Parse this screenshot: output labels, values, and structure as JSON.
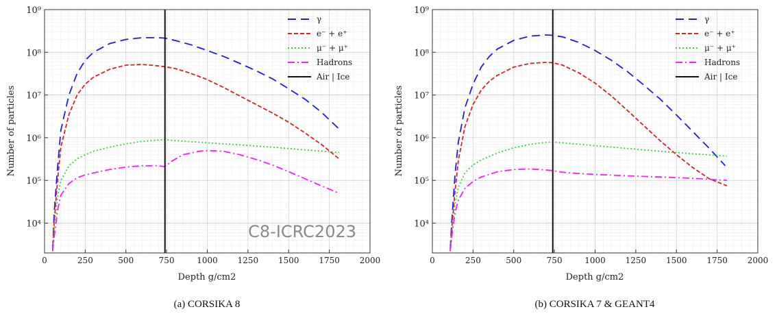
{
  "chart_data": [
    {
      "type": "line",
      "caption": "(a) CORSIKA 8",
      "xlabel": "Depth g/cm2",
      "ylabel": "Number of particles",
      "xlim": [
        0,
        2000
      ],
      "ylim": [
        2000,
        1000000000
      ],
      "yscale": "log",
      "grid": true,
      "legend": "top-right",
      "xticks": [
        0,
        250,
        500,
        750,
        1000,
        1250,
        1500,
        1750,
        2000
      ],
      "yticks": [
        "10⁴",
        "10⁵",
        "10⁶",
        "10⁷",
        "10⁸",
        "10⁹"
      ],
      "annotation": "C8-ICRC2023",
      "vline": {
        "name": "Air | Ice",
        "x": 740
      },
      "series": [
        {
          "name": "γ",
          "color": "#1a1aff",
          "points": [
            [
              50,
              2500
            ],
            [
              60,
              20000
            ],
            [
              80,
              200000
            ],
            [
              100,
              1500000
            ],
            [
              150,
              10000000
            ],
            [
              200,
              32000000
            ],
            [
              250,
              65000000
            ],
            [
              300,
              100000000
            ],
            [
              400,
              160000000
            ],
            [
              500,
              200000000
            ],
            [
              600,
              220000000
            ],
            [
              700,
              220000000
            ],
            [
              740,
              215000000
            ],
            [
              800,
              190000000
            ],
            [
              900,
              150000000
            ],
            [
              1000,
              110000000
            ],
            [
              1100,
              80000000
            ],
            [
              1200,
              55000000
            ],
            [
              1300,
              37000000
            ],
            [
              1400,
              24000000
            ],
            [
              1500,
              14000000
            ],
            [
              1600,
              8000000
            ],
            [
              1700,
              4000000
            ],
            [
              1810,
              1600000
            ]
          ]
        },
        {
          "name": "e⁻ + e⁺",
          "color": "#e0201b",
          "points": [
            [
              50,
              2300
            ],
            [
              60,
              12000
            ],
            [
              80,
              100000
            ],
            [
              100,
              600000
            ],
            [
              150,
              3500000
            ],
            [
              200,
              10000000
            ],
            [
              250,
              18000000
            ],
            [
              300,
              26000000
            ],
            [
              400,
              40000000
            ],
            [
              500,
              50000000
            ],
            [
              600,
              52000000
            ],
            [
              700,
              48000000
            ],
            [
              740,
              46000000
            ],
            [
              800,
              42000000
            ],
            [
              900,
              32000000
            ],
            [
              1000,
              23000000
            ],
            [
              1100,
              15000000
            ],
            [
              1200,
              9500000
            ],
            [
              1300,
              6000000
            ],
            [
              1400,
              3800000
            ],
            [
              1500,
              2300000
            ],
            [
              1600,
              1300000
            ],
            [
              1700,
              700000
            ],
            [
              1810,
              320000
            ]
          ]
        },
        {
          "name": "μ⁻ + μ⁺",
          "color": "#2bdc2b",
          "points": [
            [
              50,
              2200
            ],
            [
              60,
              8000
            ],
            [
              80,
              40000
            ],
            [
              100,
              100000
            ],
            [
              150,
              220000
            ],
            [
              200,
              320000
            ],
            [
              250,
              400000
            ],
            [
              300,
              480000
            ],
            [
              400,
              600000
            ],
            [
              500,
              720000
            ],
            [
              600,
              820000
            ],
            [
              700,
              880000
            ],
            [
              740,
              900000
            ],
            [
              800,
              860000
            ],
            [
              1000,
              760000
            ],
            [
              1200,
              680000
            ],
            [
              1400,
              600000
            ],
            [
              1600,
              520000
            ],
            [
              1810,
              450000
            ]
          ]
        },
        {
          "name": "Hadrons",
          "color": "#ff1aff",
          "points": [
            [
              50,
              2200
            ],
            [
              60,
              5000
            ],
            [
              80,
              20000
            ],
            [
              100,
              45000
            ],
            [
              150,
              85000
            ],
            [
              200,
              115000
            ],
            [
              250,
              135000
            ],
            [
              300,
              150000
            ],
            [
              400,
              180000
            ],
            [
              500,
              205000
            ],
            [
              600,
              220000
            ],
            [
              700,
              220000
            ],
            [
              740,
              210000
            ],
            [
              780,
              280000
            ],
            [
              850,
              400000
            ],
            [
              950,
              480000
            ],
            [
              1000,
              500000
            ],
            [
              1100,
              480000
            ],
            [
              1200,
              400000
            ],
            [
              1300,
              310000
            ],
            [
              1400,
              230000
            ],
            [
              1500,
              160000
            ],
            [
              1600,
              110000
            ],
            [
              1700,
              75000
            ],
            [
              1810,
              50000
            ]
          ]
        }
      ]
    },
    {
      "type": "line",
      "caption": "(b) CORSIKA 7 & GEANT4",
      "xlabel": "Depth g/cm2",
      "ylabel": "Number of particles",
      "xlim": [
        0,
        2000
      ],
      "ylim": [
        2000,
        1000000000
      ],
      "yscale": "log",
      "grid": true,
      "legend": "top-right",
      "xticks": [
        0,
        250,
        500,
        750,
        1000,
        1250,
        1500,
        1750,
        2000
      ],
      "yticks": [
        "10⁴",
        "10⁵",
        "10⁶",
        "10⁷",
        "10⁸",
        "10⁹"
      ],
      "vline": {
        "name": "Air | Ice",
        "x": 740
      },
      "series": [
        {
          "name": "γ",
          "color": "#1a1aff",
          "points": [
            [
              110,
              2500
            ],
            [
              120,
              12000
            ],
            [
              140,
              150000
            ],
            [
              160,
              800000
            ],
            [
              200,
              5000000
            ],
            [
              250,
              18000000
            ],
            [
              300,
              45000000
            ],
            [
              350,
              80000000
            ],
            [
              400,
              120000000
            ],
            [
              500,
              190000000
            ],
            [
              600,
              240000000
            ],
            [
              700,
              255000000
            ],
            [
              740,
              250000000
            ],
            [
              800,
              230000000
            ],
            [
              900,
              170000000
            ],
            [
              1000,
              110000000
            ],
            [
              1100,
              65000000
            ],
            [
              1200,
              35000000
            ],
            [
              1300,
              17000000
            ],
            [
              1400,
              8000000
            ],
            [
              1500,
              3400000
            ],
            [
              1600,
              1400000
            ],
            [
              1700,
              570000
            ],
            [
              1800,
              220000
            ]
          ]
        },
        {
          "name": "e⁻ + e⁺",
          "color": "#e0201b",
          "points": [
            [
              110,
              2300
            ],
            [
              120,
              8000
            ],
            [
              140,
              60000
            ],
            [
              160,
              300000
            ],
            [
              200,
              1800000
            ],
            [
              250,
              6000000
            ],
            [
              300,
              13000000
            ],
            [
              350,
              21000000
            ],
            [
              400,
              29000000
            ],
            [
              500,
              45000000
            ],
            [
              600,
              55000000
            ],
            [
              700,
              58000000
            ],
            [
              740,
              57000000
            ],
            [
              800,
              50000000
            ],
            [
              900,
              33000000
            ],
            [
              1000,
              19000000
            ],
            [
              1100,
              9500000
            ],
            [
              1200,
              4300000
            ],
            [
              1300,
              1900000
            ],
            [
              1400,
              850000
            ],
            [
              1500,
              400000
            ],
            [
              1600,
              200000
            ],
            [
              1700,
              110000
            ],
            [
              1810,
              75000
            ]
          ]
        },
        {
          "name": "μ⁻ + μ⁺",
          "color": "#2bdc2b",
          "points": [
            [
              110,
              2200
            ],
            [
              120,
              6000
            ],
            [
              140,
              30000
            ],
            [
              160,
              70000
            ],
            [
              200,
              150000
            ],
            [
              250,
              230000
            ],
            [
              300,
              300000
            ],
            [
              400,
              440000
            ],
            [
              500,
              580000
            ],
            [
              600,
              700000
            ],
            [
              700,
              780000
            ],
            [
              740,
              790000
            ],
            [
              800,
              760000
            ],
            [
              1000,
              650000
            ],
            [
              1200,
              560000
            ],
            [
              1400,
              480000
            ],
            [
              1600,
              420000
            ],
            [
              1810,
              370000
            ]
          ]
        },
        {
          "name": "Hadrons",
          "color": "#ff1aff",
          "points": [
            [
              110,
              2200
            ],
            [
              120,
              5000
            ],
            [
              140,
              18000
            ],
            [
              160,
              35000
            ],
            [
              200,
              65000
            ],
            [
              250,
              95000
            ],
            [
              300,
              120000
            ],
            [
              400,
              160000
            ],
            [
              500,
              180000
            ],
            [
              600,
              185000
            ],
            [
              700,
              175000
            ],
            [
              740,
              170000
            ],
            [
              800,
              155000
            ],
            [
              900,
              145000
            ],
            [
              1000,
              138000
            ],
            [
              1200,
              128000
            ],
            [
              1400,
              120000
            ],
            [
              1600,
              112000
            ],
            [
              1810,
              100000
            ]
          ]
        }
      ]
    }
  ]
}
